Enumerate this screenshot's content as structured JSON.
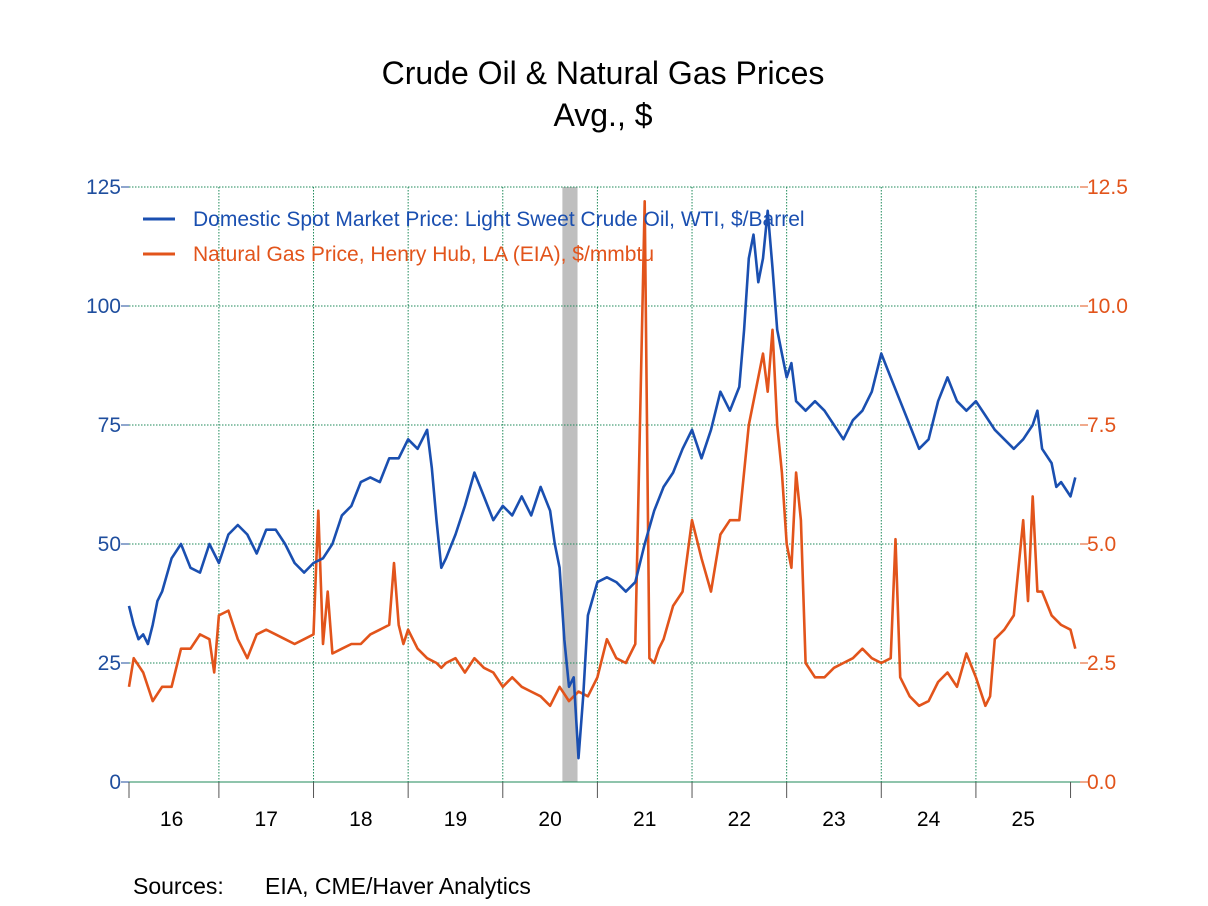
{
  "chart_data": {
    "type": "line",
    "title": "Crude Oil & Natural Gas Prices",
    "subtitle": "Avg., $",
    "source_label": "Sources:",
    "source_text": "EIA, CME/Haver Analytics",
    "x_range": [
      2015.55,
      2025.6
    ],
    "x_ticks": [
      {
        "label": "16",
        "x": 2016.0
      },
      {
        "label": "17",
        "x": 2017.0
      },
      {
        "label": "18",
        "x": 2018.0
      },
      {
        "label": "19",
        "x": 2019.0
      },
      {
        "label": "20",
        "x": 2020.0
      },
      {
        "label": "21",
        "x": 2021.0
      },
      {
        "label": "22",
        "x": 2022.0
      },
      {
        "label": "23",
        "x": 2023.0
      },
      {
        "label": "24",
        "x": 2024.0
      },
      {
        "label": "25",
        "x": 2025.0
      }
    ],
    "y_left": {
      "range": [
        0,
        125
      ],
      "ticks": [
        "0",
        "25",
        "50",
        "75",
        "100",
        "125"
      ],
      "values": [
        0,
        25,
        50,
        75,
        100,
        125
      ]
    },
    "y_right": {
      "range": [
        0,
        12.5
      ],
      "ticks": [
        "0.0",
        "2.5",
        "5.0",
        "7.5",
        "10.0",
        "12.5"
      ],
      "values": [
        0,
        2.5,
        5,
        7.5,
        10,
        12.5
      ]
    },
    "recession": [
      2020.13,
      2020.29
    ],
    "grid": true,
    "legend_position": "top-left",
    "colors": {
      "oil": "#1a4fb0",
      "gas": "#e2541b",
      "axis_left": "#1f4e9e",
      "axis_right": "#e2541b",
      "grid": "#1f8a5a",
      "recession": "#bfbfbf"
    },
    "series": [
      {
        "name": "Domestic Spot Market Price: Light Sweet Crude Oil, WTI, $/Barrel",
        "axis": "left",
        "x": [
          2015.55,
          2015.6,
          2015.65,
          2015.7,
          2015.75,
          2015.8,
          2015.85,
          2015.9,
          2016.0,
          2016.1,
          2016.2,
          2016.3,
          2016.4,
          2016.5,
          2016.6,
          2016.7,
          2016.8,
          2016.9,
          2017.0,
          2017.1,
          2017.2,
          2017.3,
          2017.4,
          2017.5,
          2017.6,
          2017.7,
          2017.8,
          2017.9,
          2018.0,
          2018.1,
          2018.2,
          2018.3,
          2018.4,
          2018.5,
          2018.6,
          2018.7,
          2018.75,
          2018.8,
          2018.85,
          2018.9,
          2019.0,
          2019.1,
          2019.2,
          2019.3,
          2019.4,
          2019.5,
          2019.6,
          2019.7,
          2019.8,
          2019.9,
          2020.0,
          2020.05,
          2020.1,
          2020.15,
          2020.2,
          2020.25,
          2020.3,
          2020.35,
          2020.4,
          2020.5,
          2020.6,
          2020.7,
          2020.8,
          2020.9,
          2021.0,
          2021.1,
          2021.2,
          2021.3,
          2021.4,
          2021.5,
          2021.6,
          2021.7,
          2021.8,
          2021.9,
          2022.0,
          2022.05,
          2022.1,
          2022.15,
          2022.2,
          2022.25,
          2022.3,
          2022.35,
          2022.4,
          2022.45,
          2022.5,
          2022.55,
          2022.6,
          2022.7,
          2022.8,
          2022.9,
          2023.0,
          2023.1,
          2023.2,
          2023.3,
          2023.4,
          2023.5,
          2023.6,
          2023.7,
          2023.8,
          2023.9,
          2024.0,
          2024.1,
          2024.2,
          2024.3,
          2024.4,
          2024.5,
          2024.6,
          2024.7,
          2024.8,
          2024.9,
          2025.0,
          2025.1,
          2025.15,
          2025.2,
          2025.3,
          2025.35,
          2025.4,
          2025.5,
          2025.55
        ],
        "values": [
          37,
          33,
          30,
          31,
          29,
          33,
          38,
          40,
          47,
          50,
          45,
          44,
          50,
          46,
          52,
          54,
          52,
          48,
          53,
          53,
          50,
          46,
          44,
          46,
          47,
          50,
          56,
          58,
          63,
          64,
          63,
          68,
          68,
          72,
          70,
          74,
          66,
          55,
          45,
          47,
          52,
          58,
          65,
          60,
          55,
          58,
          56,
          60,
          56,
          62,
          57,
          50,
          45,
          30,
          20,
          22,
          5,
          18,
          35,
          42,
          43,
          42,
          40,
          42,
          50,
          57,
          62,
          65,
          70,
          74,
          68,
          74,
          82,
          78,
          83,
          95,
          110,
          115,
          105,
          110,
          120,
          108,
          95,
          90,
          85,
          88,
          80,
          78,
          80,
          78,
          75,
          72,
          76,
          78,
          82,
          90,
          85,
          80,
          75,
          70,
          72,
          80,
          85,
          80,
          78,
          80,
          77,
          74,
          72,
          70,
          72,
          75,
          78,
          70,
          67,
          62,
          63,
          60,
          64
        ]
      },
      {
        "name": "Natural Gas Price, Henry Hub, LA (EIA), $/mmbtu",
        "axis": "right",
        "x": [
          2015.55,
          2015.6,
          2015.7,
          2015.8,
          2015.9,
          2016.0,
          2016.1,
          2016.2,
          2016.3,
          2016.4,
          2016.45,
          2016.5,
          2016.6,
          2016.7,
          2016.8,
          2016.9,
          2017.0,
          2017.1,
          2017.2,
          2017.3,
          2017.4,
          2017.5,
          2017.55,
          2017.6,
          2017.65,
          2017.7,
          2017.8,
          2017.9,
          2018.0,
          2018.1,
          2018.2,
          2018.3,
          2018.35,
          2018.4,
          2018.45,
          2018.5,
          2018.6,
          2018.7,
          2018.8,
          2018.85,
          2018.9,
          2019.0,
          2019.1,
          2019.2,
          2019.3,
          2019.4,
          2019.5,
          2019.6,
          2019.7,
          2019.8,
          2019.9,
          2020.0,
          2020.1,
          2020.2,
          2020.3,
          2020.4,
          2020.5,
          2020.6,
          2020.7,
          2020.8,
          2020.9,
          2021.0,
          2021.05,
          2021.1,
          2021.15,
          2021.2,
          2021.3,
          2021.4,
          2021.5,
          2021.6,
          2021.7,
          2021.8,
          2021.9,
          2022.0,
          2022.1,
          2022.2,
          2022.25,
          2022.3,
          2022.35,
          2022.4,
          2022.45,
          2022.5,
          2022.55,
          2022.6,
          2022.65,
          2022.7,
          2022.8,
          2022.9,
          2023.0,
          2023.1,
          2023.2,
          2023.3,
          2023.4,
          2023.5,
          2023.6,
          2023.65,
          2023.7,
          2023.8,
          2023.9,
          2024.0,
          2024.1,
          2024.2,
          2024.3,
          2024.4,
          2024.5,
          2024.6,
          2024.65,
          2024.7,
          2024.8,
          2024.9,
          2025.0,
          2025.05,
          2025.1,
          2025.15,
          2025.2,
          2025.3,
          2025.4,
          2025.5,
          2025.55
        ],
        "values": [
          2.0,
          2.6,
          2.3,
          1.7,
          2.0,
          2.0,
          2.8,
          2.8,
          3.1,
          3.0,
          2.3,
          3.5,
          3.6,
          3.0,
          2.6,
          3.1,
          3.2,
          3.1,
          3.0,
          2.9,
          3.0,
          3.1,
          5.7,
          2.9,
          4.0,
          2.7,
          2.8,
          2.9,
          2.9,
          3.1,
          3.2,
          3.3,
          4.6,
          3.3,
          2.9,
          3.2,
          2.8,
          2.6,
          2.5,
          2.4,
          2.5,
          2.6,
          2.3,
          2.6,
          2.4,
          2.3,
          2.0,
          2.2,
          2.0,
          1.9,
          1.8,
          1.6,
          2.0,
          1.7,
          1.9,
          1.8,
          2.2,
          3.0,
          2.6,
          2.5,
          2.9,
          12.2,
          2.6,
          2.5,
          2.8,
          3.0,
          3.7,
          4.0,
          5.5,
          4.7,
          4.0,
          5.2,
          5.5,
          5.5,
          7.5,
          8.5,
          9.0,
          8.2,
          9.5,
          7.5,
          6.5,
          5.0,
          4.5,
          6.5,
          5.5,
          2.5,
          2.2,
          2.2,
          2.4,
          2.5,
          2.6,
          2.8,
          2.6,
          2.5,
          2.6,
          5.1,
          2.2,
          1.8,
          1.6,
          1.7,
          2.1,
          2.3,
          2.0,
          2.7,
          2.2,
          1.6,
          1.8,
          3.0,
          3.2,
          3.5,
          5.5,
          3.8,
          6.0,
          4.0,
          4.0,
          3.5,
          3.3,
          3.2,
          2.8
        ]
      }
    ]
  }
}
